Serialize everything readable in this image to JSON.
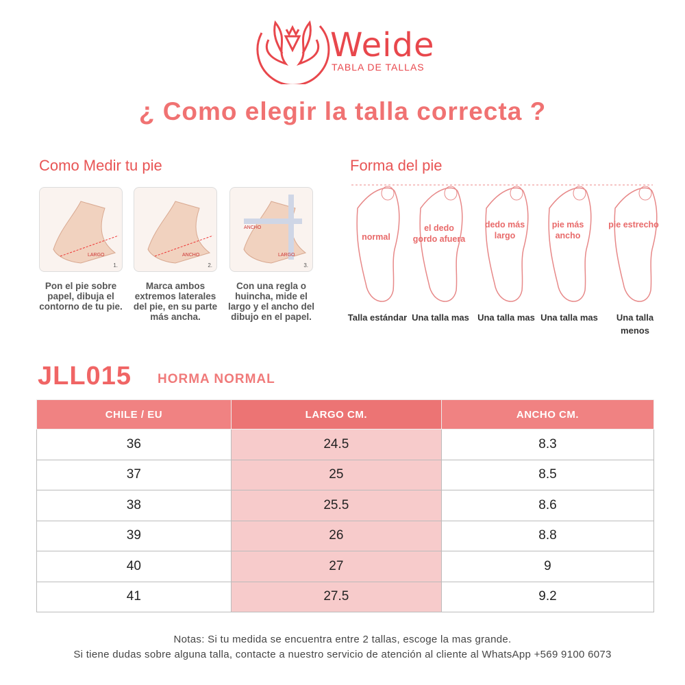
{
  "brand": {
    "name": "Weide",
    "subtitle": "TABLA DE TALLAS"
  },
  "title": "¿ Como elegir la talla correcta ?",
  "measure": {
    "heading": "Como Medir tu pie",
    "steps": [
      {
        "num": "1.",
        "tag": "LARGO",
        "caption": "Pon el pie sobre papel, dibuja el contorno de tu pie."
      },
      {
        "num": "2.",
        "tag": "ANCHO",
        "caption": "Marca ambos extremos laterales del pie, en su parte más ancha."
      },
      {
        "num": "3.",
        "tag": "LARGO",
        "tag2": "ANCHO",
        "caption": "Con una regla o huincha, mide el largo y el ancho del dibujo en el papel."
      }
    ]
  },
  "shape": {
    "heading": "Forma del pie",
    "feet": [
      {
        "label": "normal",
        "result": "Talla estándar"
      },
      {
        "label": "el dedo gordo afuera",
        "result": "Una talla mas"
      },
      {
        "label": "dedo más largo",
        "result": "Una talla mas"
      },
      {
        "label": "pie más ancho",
        "result": "Una talla mas"
      },
      {
        "label": "pie estrecho",
        "result": "Una talla menos"
      }
    ]
  },
  "model": {
    "code": "JLL015",
    "fit": "HORMA NORMAL"
  },
  "table": {
    "headers": [
      "CHILE / EU",
      "LARGO CM.",
      "ANCHO CM."
    ],
    "rows": [
      [
        "36",
        "24.5",
        "8.3"
      ],
      [
        "37",
        "25",
        "8.5"
      ],
      [
        "38",
        "25.5",
        "8.6"
      ],
      [
        "39",
        "26",
        "8.8"
      ],
      [
        "40",
        "27",
        "9"
      ],
      [
        "41",
        "27.5",
        "9.2"
      ]
    ]
  },
  "notes": [
    "Notas: Si tu medida se encuentra entre 2 tallas, escoge la mas grande.",
    "Si tiene dudas sobre alguna talla, contacte a nuestro servicio de atención al cliente al WhatsApp +569 9100 6073"
  ],
  "colors": {
    "accent": "#f07272",
    "header": "#f08282",
    "highlight": "#f7cbcb"
  }
}
